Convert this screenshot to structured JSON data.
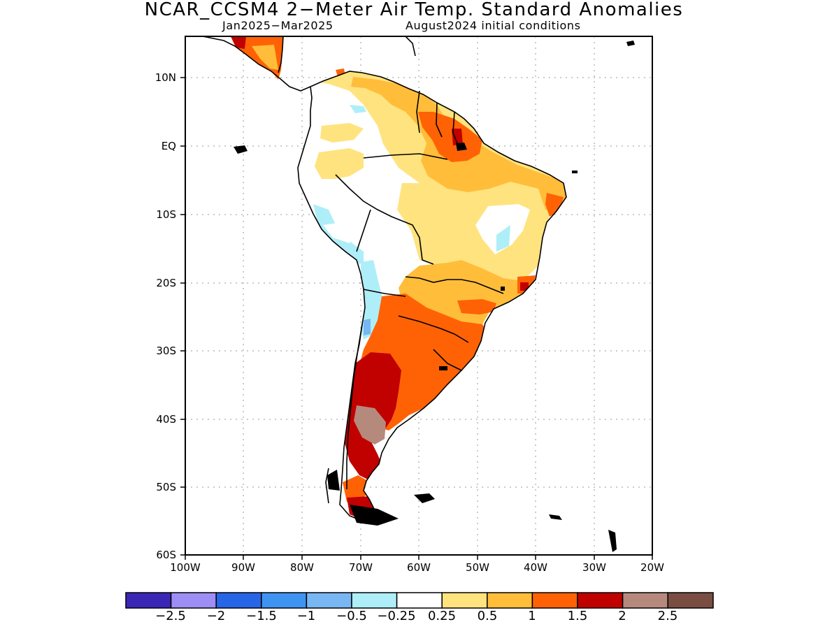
{
  "title": "NCAR_CCSM4 2−Meter Air Temp. Standard Anomalies",
  "subtitle_left": "Jan2025−Mar2025",
  "subtitle_right": "August2024 initial conditions",
  "map": {
    "variable": "2-meter air temperature standardized anomaly",
    "lon_range": [
      -100,
      -20
    ],
    "lat_range": [
      -60,
      15
    ],
    "grid": "dotted",
    "lat_ticks": [
      "10N",
      "EQ",
      "10S",
      "20S",
      "30S",
      "40S",
      "50S",
      "60S"
    ],
    "lon_ticks": [
      "100W",
      "90W",
      "80W",
      "70W",
      "60W",
      "50W",
      "40W",
      "30W",
      "20W"
    ]
  },
  "colorbar": {
    "colors": [
      "#3b27b6",
      "#9d8ef6",
      "#2665e6",
      "#3e94f0",
      "#78b7f4",
      "#aeeef8",
      "#ffffff",
      "#ffe37e",
      "#ffbd3a",
      "#ff6205",
      "#c10000",
      "#b58a7d",
      "#7a4d42"
    ],
    "labels": [
      "−2.5",
      "−2",
      "−1.5",
      "−1",
      "−0.5",
      "−0.25",
      "0.25",
      "0.5",
      "1",
      "1.5",
      "2",
      "2.5"
    ]
  },
  "regions": [
    {
      "name": "Guianas / northern Brazil",
      "category": "1 to 1.5"
    },
    {
      "name": "Amapá / Pará coast",
      "category": "1.5 to 2"
    },
    {
      "name": "Central and northeastern Brazil",
      "category": "0.25 to 0.5"
    },
    {
      "name": "Northeast Brazil interior",
      "category": "-0.25 to 0.25"
    },
    {
      "name": "Northern Chile / Bolivia",
      "category": "-0.5 to -0.25"
    },
    {
      "name": "Northern Argentina / Paraguay / southern Brazil",
      "category": "1 to 1.5"
    },
    {
      "name": "Central Argentina / Patagonia",
      "category": "1.5 to 2"
    },
    {
      "name": "Northern Patagonia",
      "category": "2 to 2.5"
    },
    {
      "name": "Central America",
      "category": "1 to 1.5"
    }
  ]
}
